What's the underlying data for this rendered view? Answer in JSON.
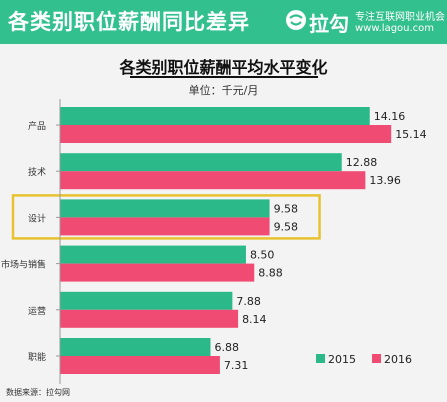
{
  "banner": {
    "title": "各类别职位薪酬同比差异",
    "brand_name": "拉勾",
    "brand_slogan": "专注互联网职业机会",
    "brand_url": "www.lagou.com",
    "color": "#33c08f"
  },
  "chart_data": {
    "type": "bar",
    "orientation": "horizontal",
    "title": "各类别职位薪酬平均水平变化",
    "unit_label": "单位：千元/月",
    "categories": [
      "产品",
      "技术",
      "设计",
      "市场与销售",
      "运营",
      "职能"
    ],
    "series": [
      {
        "name": "2015",
        "color": "#2bb98a",
        "values": [
          14.16,
          12.88,
          9.58,
          8.5,
          7.88,
          6.88
        ]
      },
      {
        "name": "2016",
        "color": "#f04c73",
        "values": [
          15.14,
          13.96,
          9.58,
          8.88,
          8.14,
          7.31
        ]
      }
    ],
    "value_labels": [
      [
        "14.16",
        "12.88",
        "9.58",
        "8.50",
        "7.88",
        "6.88"
      ],
      [
        "15.14",
        "13.96",
        "9.58",
        "8.88",
        "8.14",
        "7.31"
      ]
    ],
    "xlim": [
      0,
      16
    ],
    "highlighted_category": "设计",
    "highlight_color": "#e8c22f",
    "legend_position": "bottom-right",
    "grid": false
  },
  "source": "数据来源：拉勾网"
}
